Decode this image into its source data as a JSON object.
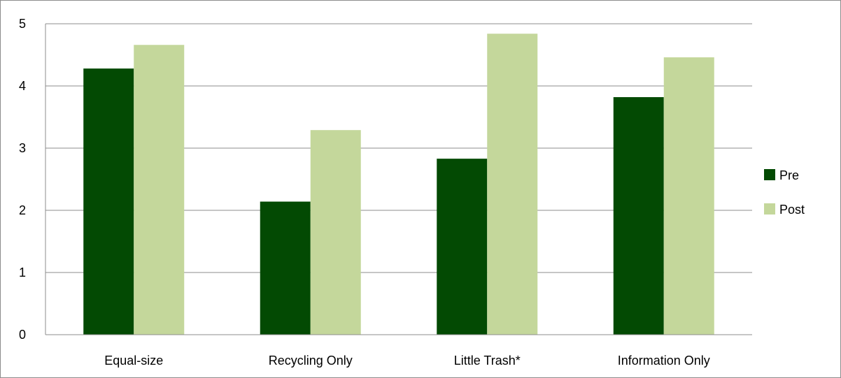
{
  "chart_data": {
    "type": "bar",
    "categories": [
      "Equal-size",
      "Recycling Only",
      "Little Trash*",
      "Information Only"
    ],
    "series": [
      {
        "name": "Pre",
        "values": [
          4.28,
          2.14,
          2.83,
          3.82
        ],
        "color": "#034a03"
      },
      {
        "name": "Post",
        "values": [
          4.66,
          3.29,
          4.84,
          4.46
        ],
        "color": "#c4d79b"
      }
    ],
    "ylim": [
      0,
      5
    ],
    "yticks": [
      "0",
      "1",
      "2",
      "3",
      "4",
      "5"
    ],
    "grid": true,
    "legend_position": "right"
  }
}
